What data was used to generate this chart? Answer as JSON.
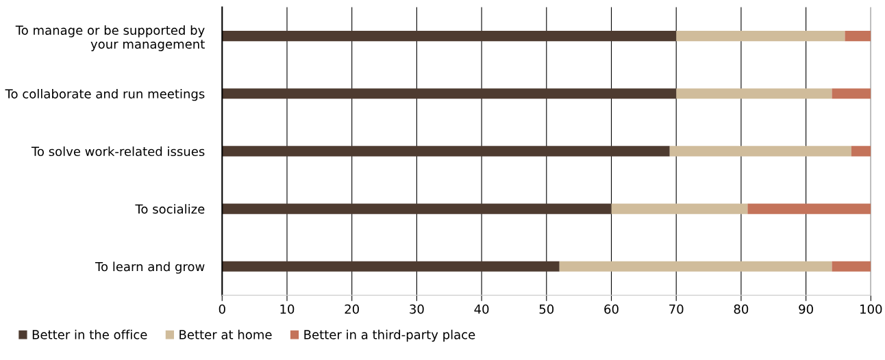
{
  "chart_data": {
    "type": "bar",
    "orientation": "horizontal",
    "stacked": true,
    "categories": [
      "To manage or be supported by your management",
      "To collaborate and run meetings",
      "To solve work-related issues",
      "To socialize",
      "To learn and grow"
    ],
    "series": [
      {
        "name": "Better in the office",
        "color": "#4e3b30",
        "values": [
          70,
          70,
          69,
          60,
          52
        ]
      },
      {
        "name": "Better at home",
        "color": "#d0bc9b",
        "values": [
          26,
          24,
          28,
          21,
          42
        ]
      },
      {
        "name": "Better in a third-party place",
        "color": "#c4735a",
        "values": [
          4,
          6,
          3,
          19,
          6
        ]
      }
    ],
    "xlim": [
      0,
      100
    ],
    "xticks": [
      0,
      10,
      20,
      30,
      40,
      50,
      60,
      70,
      80,
      90,
      100
    ],
    "grid": "x",
    "legend": "bottom left"
  }
}
